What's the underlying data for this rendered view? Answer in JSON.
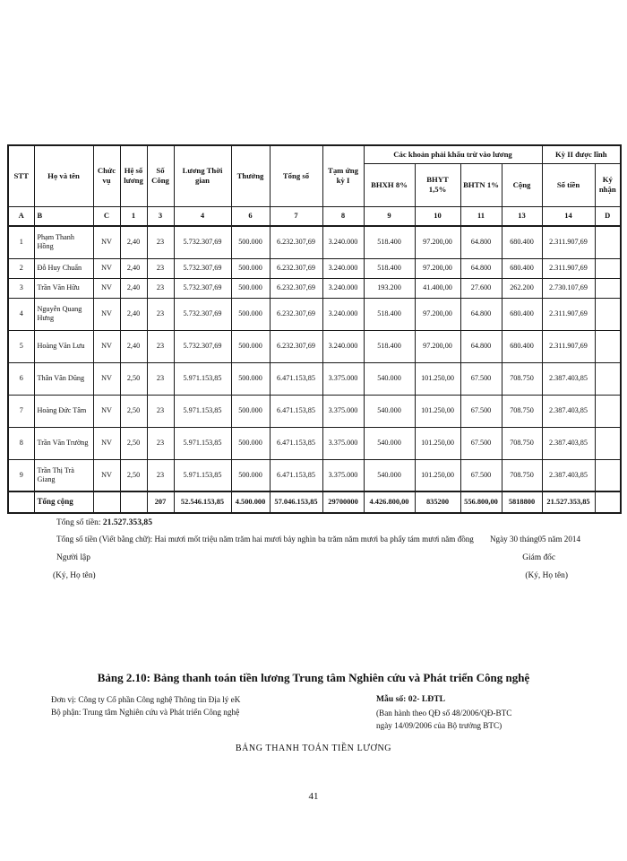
{
  "page": {
    "number": "41"
  },
  "table": {
    "col_headers": {
      "stt": "STT",
      "name": "Họ và tên",
      "position": "Chức vụ",
      "coef": "Hệ số lương",
      "days": "Số Công",
      "time_salary": "Lương Thời gian",
      "bonus": "Thưởng",
      "total": "Tổng số",
      "advance": "Tạm ứng kỳ I",
      "deduction_group": "Các khoản phải khấu trừ vào lương",
      "bhxh": "BHXH 8%",
      "bhyt": "BHYT 1,5%",
      "bhtn": "BHTN 1%",
      "sum": "Cộng",
      "period2_group": "Kỳ II được lĩnh",
      "amount": "Số tiền",
      "sign": "Ký nhận"
    },
    "index_row": [
      "A",
      "B",
      "C",
      "1",
      "3",
      "4",
      "6",
      "7",
      "8",
      "9",
      "10",
      "11",
      "13",
      "14",
      "D"
    ],
    "rows": [
      [
        "1",
        "Phạm Thanh Hồng",
        "NV",
        "2,40",
        "23",
        "5.732.307,69",
        "500.000",
        "6.232.307,69",
        "3.240.000",
        "518.400",
        "97.200,00",
        "64.800",
        "680.400",
        "2.311.907,69",
        ""
      ],
      [
        "2",
        "Đỗ Huy Chuẩn",
        "NV",
        "2,40",
        "23",
        "5.732.307,69",
        "500.000",
        "6.232.307,69",
        "3.240.000",
        "518.400",
        "97.200,00",
        "64.800",
        "680.400",
        "2.311.907,69",
        ""
      ],
      [
        "3",
        "Trần Văn Hữu",
        "NV",
        "2,40",
        "23",
        "5.732.307,69",
        "500.000",
        "6.232.307,69",
        "3.240.000",
        "193.200",
        "41.400,00",
        "27.600",
        "262.200",
        "2.730.107,69",
        ""
      ],
      [
        "4",
        "Nguyễn Quang Hưng",
        "NV",
        "2,40",
        "23",
        "5.732.307,69",
        "500.000",
        "6.232.307,69",
        "3.240.000",
        "518.400",
        "97.200,00",
        "64.800",
        "680.400",
        "2.311.907,69",
        ""
      ],
      [
        "5",
        "Hoàng Văn Lưu",
        "NV",
        "2,40",
        "23",
        "5.732.307,69",
        "500.000",
        "6.232.307,69",
        "3.240.000",
        "518.400",
        "97.200,00",
        "64.800",
        "680.400",
        "2.311.907,69",
        ""
      ],
      [
        "6",
        "Thân Văn Dũng",
        "NV",
        "2,50",
        "23",
        "5.971.153,85",
        "500.000",
        "6.471.153,85",
        "3.375.000",
        "540.000",
        "101.250,00",
        "67.500",
        "708.750",
        "2.387.403,85",
        ""
      ],
      [
        "7",
        "Hoàng Đức Tâm",
        "NV",
        "2,50",
        "23",
        "5.971.153,85",
        "500.000",
        "6.471.153,85",
        "3.375.000",
        "540.000",
        "101.250,00",
        "67.500",
        "708.750",
        "2.387.403,85",
        ""
      ],
      [
        "8",
        "Trần Văn Trường",
        "NV",
        "2,50",
        "23",
        "5.971.153,85",
        "500.000",
        "6.471.153,85",
        "3.375.000",
        "540.000",
        "101.250,00",
        "67.500",
        "708.750",
        "2.387.403,85",
        ""
      ],
      [
        "9",
        "Trần Thị Trà Giang",
        "NV",
        "2,50",
        "23",
        "5.971.153,85",
        "500.000",
        "6.471.153,85",
        "3.375.000",
        "540.000",
        "101.250,00",
        "67.500",
        "708.750",
        "2.387.403,85",
        ""
      ]
    ],
    "total_row": [
      "",
      "Tổng cộng",
      "",
      "",
      "207",
      "52.546.153,85",
      "4.500.000",
      "57.046.153,85",
      "29700000",
      "4.426.800,00",
      "835200",
      "556.800,00",
      "5818800",
      "21.527.353,85",
      ""
    ]
  },
  "summary": {
    "total_label": "Tổng số tiền:",
    "total_value": "21.527.353,85",
    "in_words": "Tổng số tiền (Viết bằng chữ): Hai mươi mốt triệu năm trăm hai mươi bảy nghìn ba trăm năm mươi ba phẩy tám mươi năm đồng",
    "date_line": "Ngày 30 tháng05 năm 2014",
    "preparer": "Người lập",
    "director": "Giám đốc",
    "sign_note_left": "(Ký, Họ tên)",
    "sign_note_right": "(Ký, Họ tên)"
  },
  "caption": {
    "title": "Bảng 2.10: Bảng thanh toán tiền lương Trung tâm Nghiên cứu và Phát triển Công nghệ",
    "unit": "Đơn vị: Công ty Cổ phần Công nghệ Thông tin Địa lý eK",
    "department": "Bộ phận: Trung tâm Nghiên cứu và Phát triển Công nghệ",
    "form_no": "Mẫu số: 02- LĐTL",
    "issued_line1": "(Ban hành theo QĐ số 48/2006/QĐ-BTC",
    "issued_line2": "ngày 14/09/2006  của Bộ trưởng BTC)",
    "doc_title": "BẢNG THANH TOÁN TIỀN LƯƠNG"
  }
}
